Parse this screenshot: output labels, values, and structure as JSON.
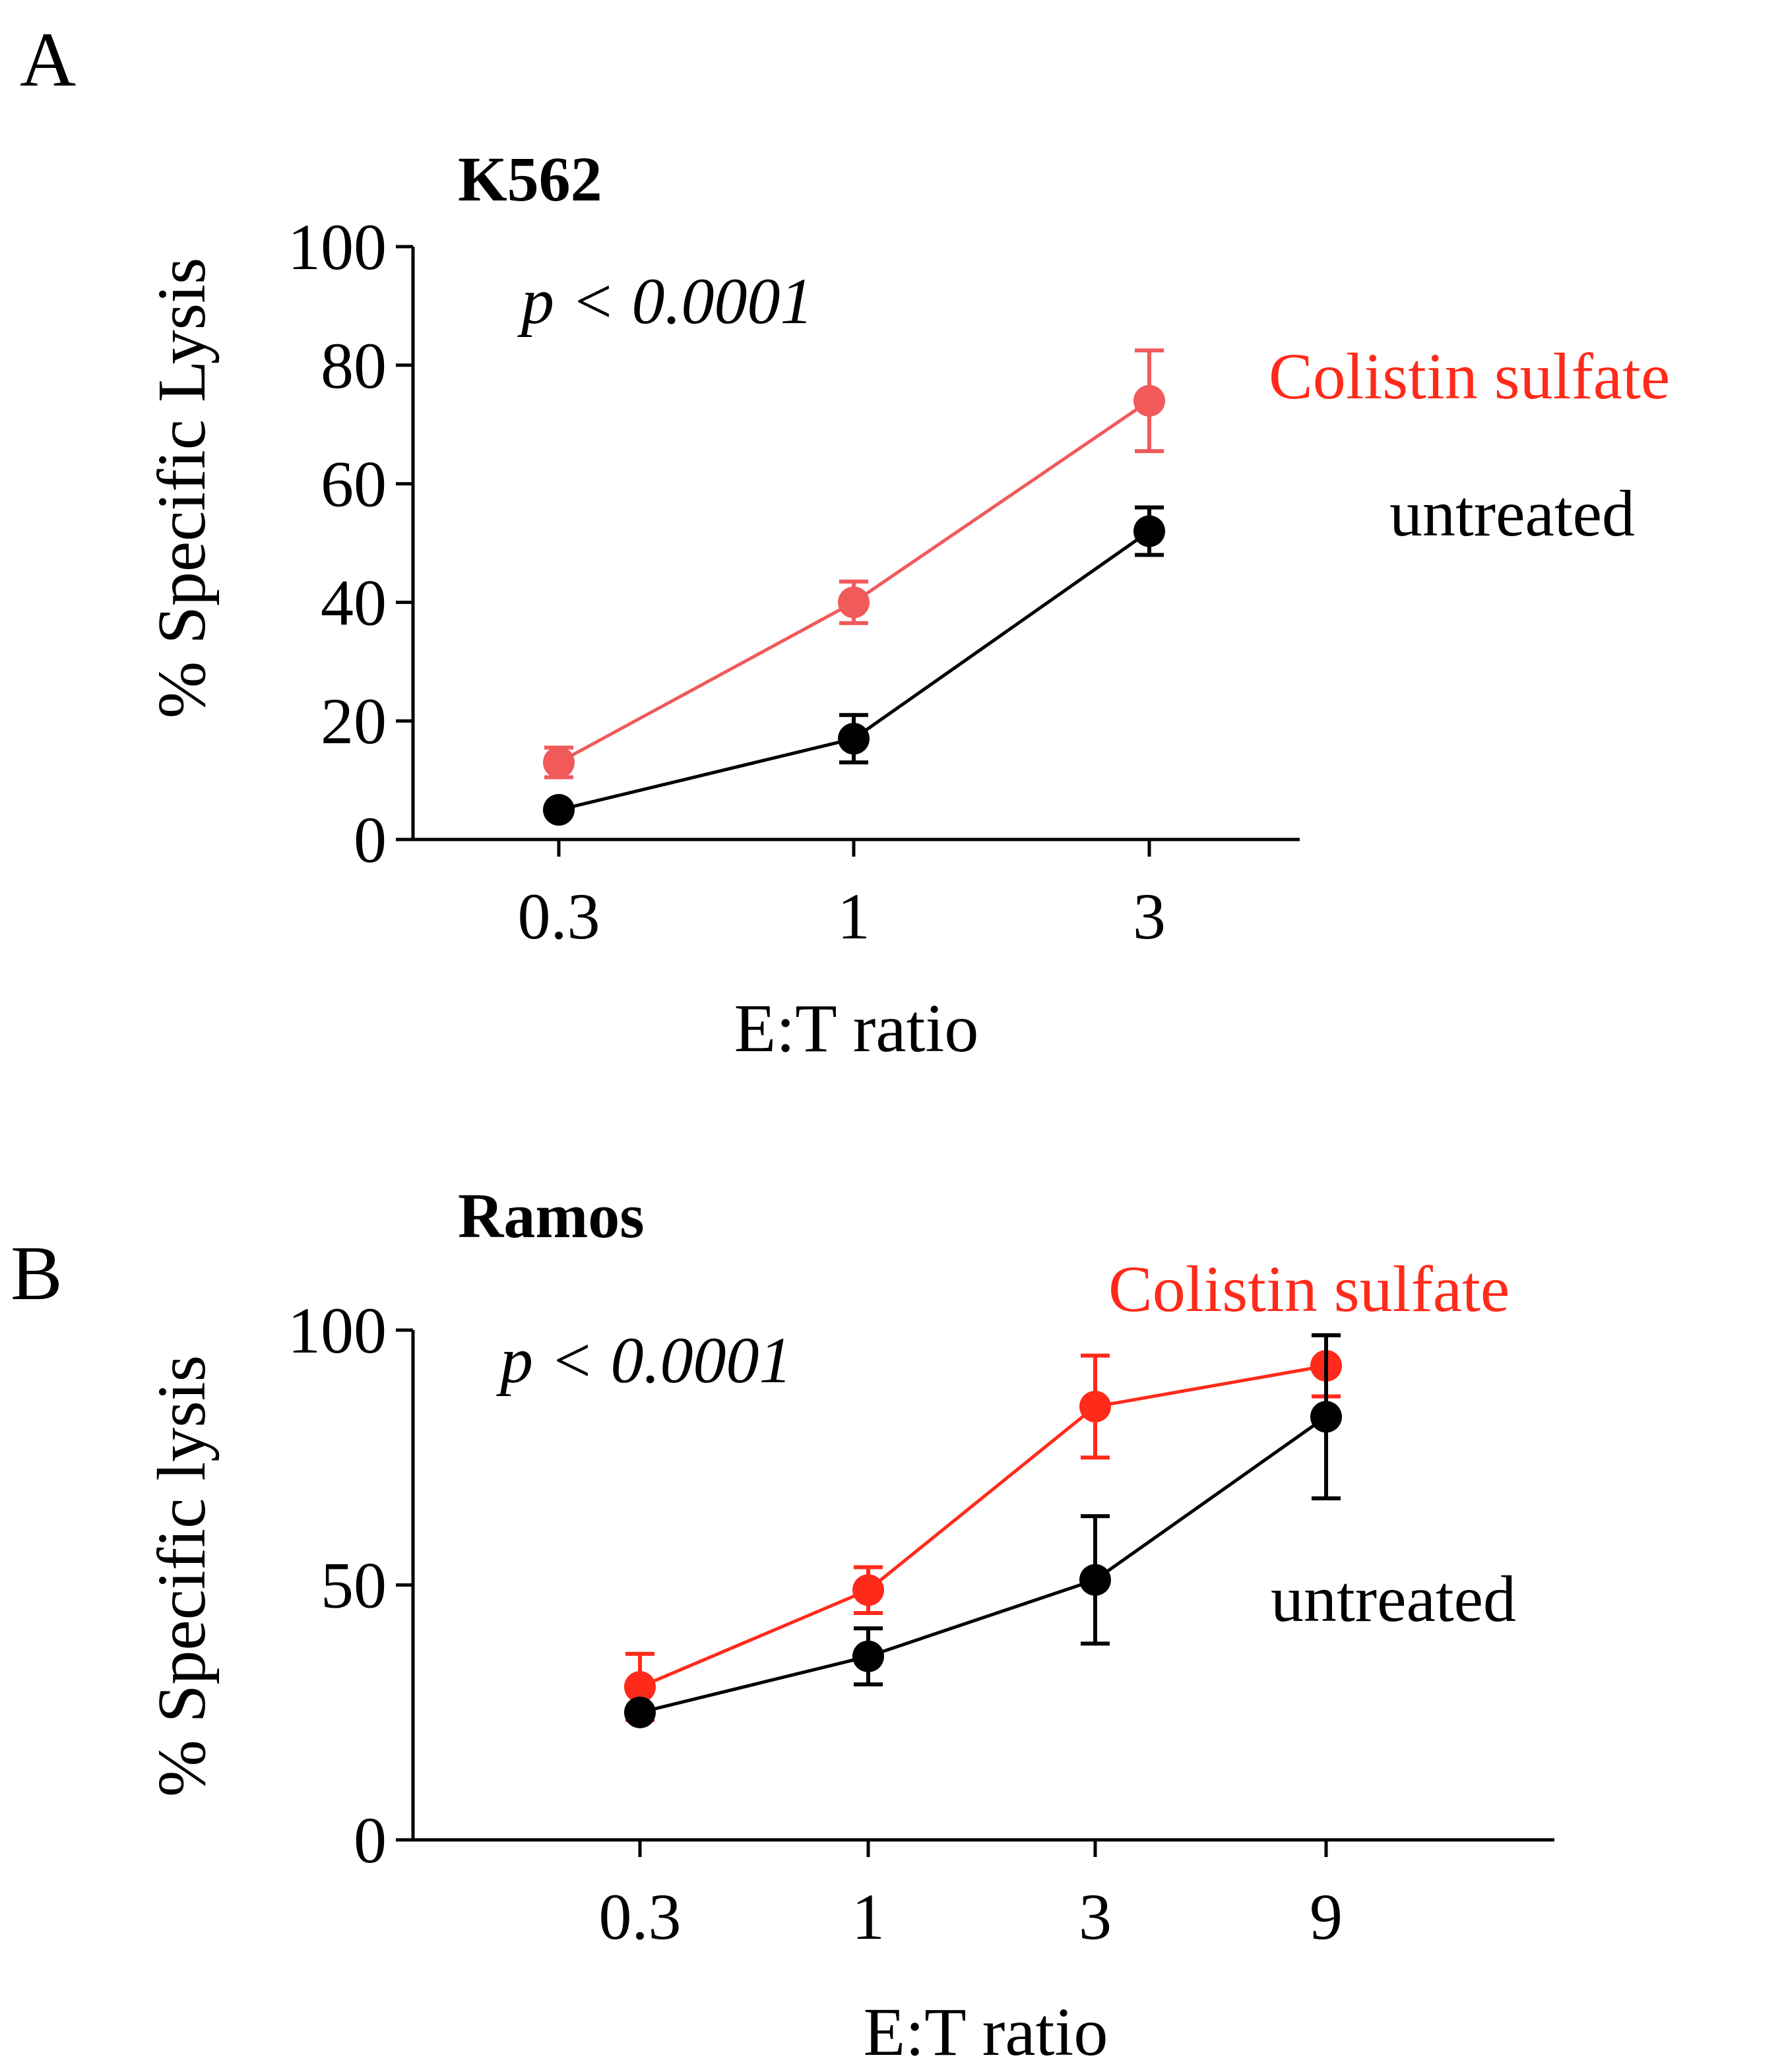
{
  "chart_data": [
    {
      "type": "line",
      "panel_label": "A",
      "title": "K562",
      "annotation": "p < 0.0001",
      "xlabel": "E:T ratio",
      "ylabel": "% Specific Lysis",
      "categories": [
        "0.3",
        "1",
        "3"
      ],
      "ylim": [
        0,
        100
      ],
      "yticks": [
        0,
        20,
        40,
        60,
        80,
        100
      ],
      "series": [
        {
          "name": "Colistin sulfate",
          "color": "#f05a5a",
          "values": [
            13,
            40,
            74
          ],
          "errors": [
            2.5,
            3.5,
            8.5
          ]
        },
        {
          "name": "untreated",
          "color": "#000000",
          "values": [
            5,
            17,
            52
          ],
          "errors": [
            0,
            4,
            4
          ]
        }
      ],
      "legend": [
        {
          "label": "Colistin sulfate",
          "color": "#ff2a1a"
        },
        {
          "label": "untreated",
          "color": "#000000"
        }
      ]
    },
    {
      "type": "line",
      "panel_label": "B",
      "title": "Ramos",
      "annotation": "p < 0.0001",
      "xlabel": "E:T ratio",
      "ylabel": "% Specific lysis",
      "categories": [
        "0.3",
        "1",
        "3",
        "9"
      ],
      "ylim": [
        0,
        100
      ],
      "yticks": [
        0,
        50,
        100
      ],
      "series": [
        {
          "name": "Colistin sulfate",
          "color": "#ff2a1a",
          "values": [
            30,
            49,
            85,
            93
          ],
          "errors": [
            6.5,
            4.5,
            10,
            6
          ]
        },
        {
          "name": "untreated",
          "color": "#000000",
          "values": [
            25,
            36,
            51,
            83
          ],
          "errors": [
            0,
            5.5,
            12.5,
            16
          ]
        }
      ],
      "legend": [
        {
          "label": "Colistin sulfate",
          "color": "#ff2a1a"
        },
        {
          "label": "untreated",
          "color": "#000000"
        }
      ]
    }
  ]
}
